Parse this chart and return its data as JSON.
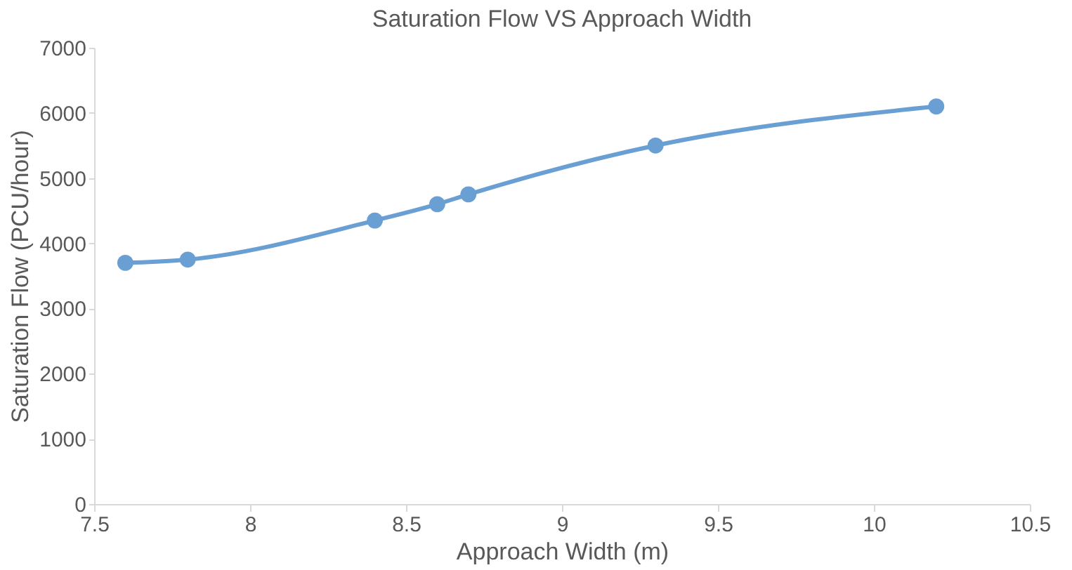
{
  "chart_data": {
    "type": "line",
    "title": "Saturation Flow VS Approach Width",
    "xlabel": "Approach Width (m)",
    "ylabel": "Saturation Flow (PCU/hour)",
    "x": [
      7.6,
      7.8,
      8.4,
      8.6,
      8.7,
      9.3,
      10.2
    ],
    "series": [
      {
        "color": "#6a9fd3",
        "values": [
          3700,
          3750,
          4350,
          4600,
          4750,
          5500,
          6100
        ]
      }
    ],
    "xlim": [
      7.5,
      10.5
    ],
    "xticks": [
      7.5,
      8,
      8.5,
      9,
      9.5,
      10,
      10.5
    ],
    "ylim": [
      0,
      7000
    ],
    "yticks": [
      0,
      1000,
      2000,
      3000,
      4000,
      5000,
      6000,
      7000
    ],
    "grid": false,
    "marker": "circle",
    "line_style": "solid"
  }
}
